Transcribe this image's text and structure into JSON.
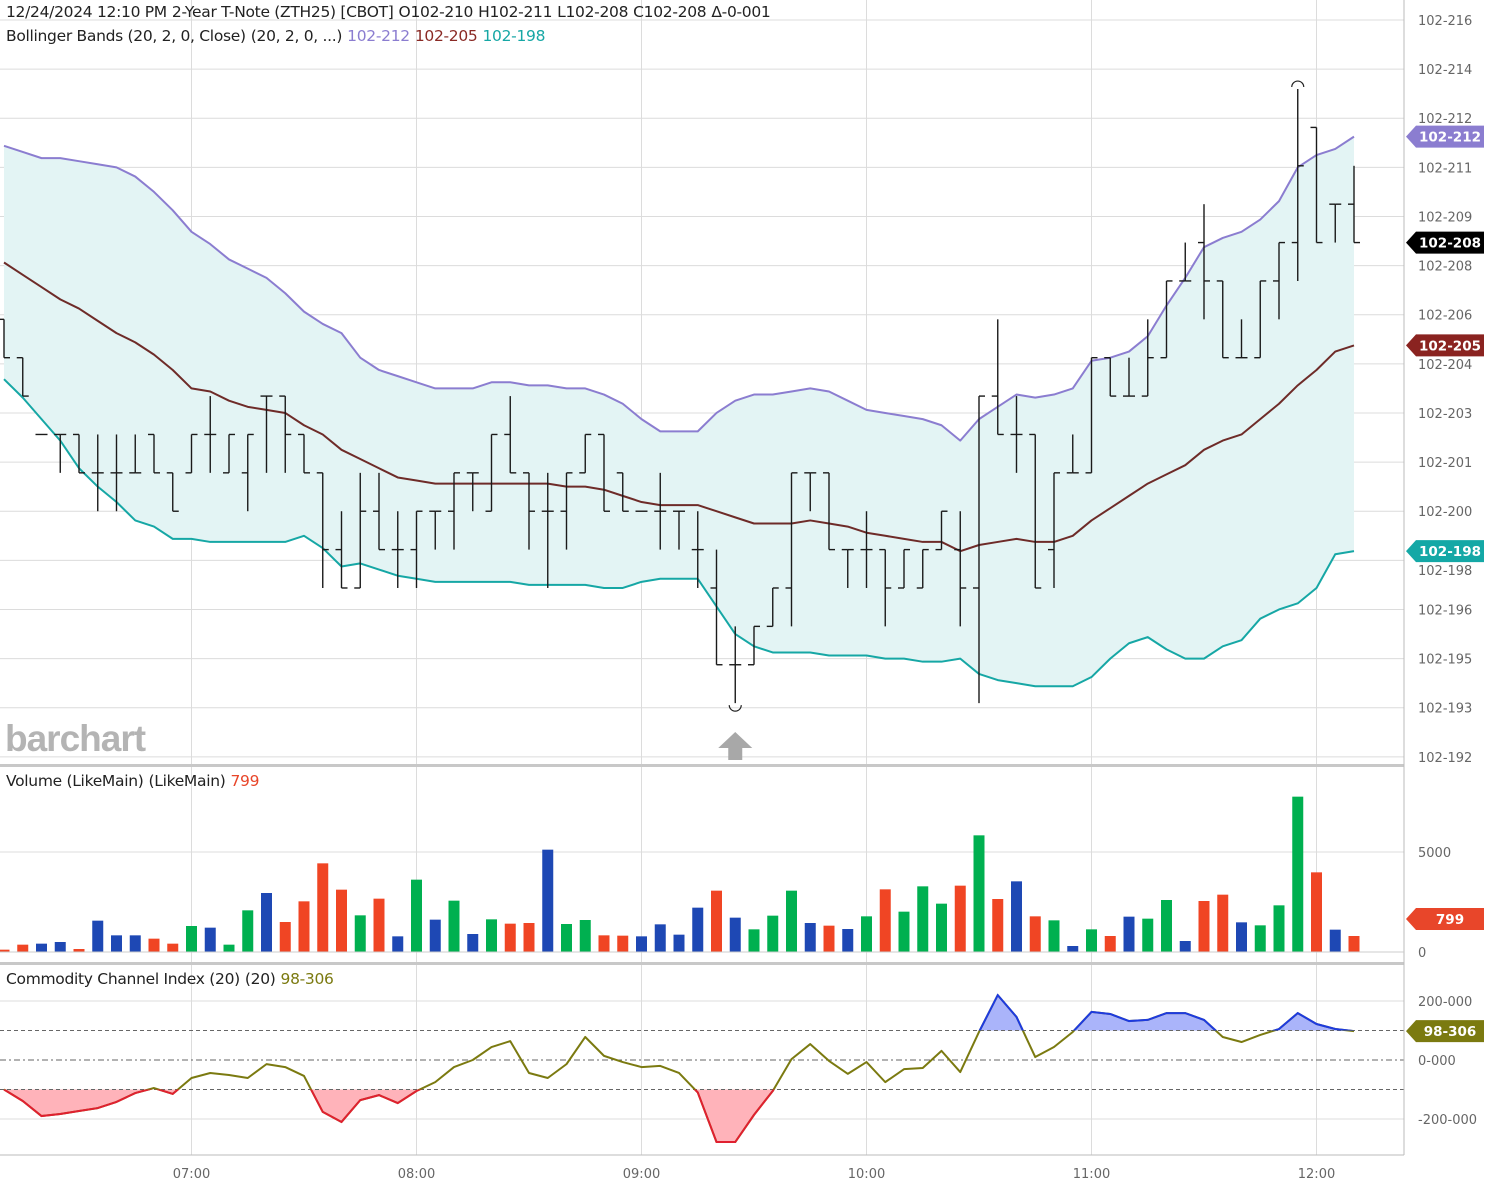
{
  "header": {
    "datetime": "12/24/2024 12:10 PM",
    "symbol": "2-Year T-Note (ZTH25) [CBOT]",
    "open": "O102-210",
    "high": "H102-211",
    "low": "L102-208",
    "close": "C102-208",
    "change": "Δ-0-001"
  },
  "bollinger_legend": {
    "name": "Bollinger Bands (20, 2, 0, Close)",
    "params": "(20, 2, 0, ...)",
    "upper": "102-212",
    "middle": "102-205",
    "lower": "102-198"
  },
  "volume_legend": {
    "name": "Volume (LikeMain)",
    "params": "(LikeMain)",
    "value": "799"
  },
  "cci_legend": {
    "name": "Commodity Channel Index (20)",
    "params": "(20)",
    "value": "98-306"
  },
  "watermark": "barchart",
  "colors": {
    "upper": "#8b7dd0",
    "middle": "#6e2b28",
    "lower": "#16a7a5",
    "band_fill": "#e3f4f4",
    "bar": "#1a1a1a",
    "vol_up": "#00b050",
    "vol_down": "#f04524",
    "vol_flat": "#1e48b4",
    "cci": "#7b7a10",
    "cci_over": "#1d3ae0",
    "cci_under": "#e02030",
    "tag_close": "#000000",
    "tag_volume": "#e8462a",
    "tag_cci": "#7b7a10"
  },
  "chart_data": [
    {
      "type": "ohlc",
      "title": "2-Year T-Note (ZTH25) [CBOT]",
      "units": "32nds above 102",
      "ylim": [
        19.18,
        21.665
      ],
      "y_ticks": [
        {
          "value": 21.6,
          "label": "102-216"
        },
        {
          "value": 21.44,
          "label": "102-214"
        },
        {
          "value": 21.28,
          "label": "102-212"
        },
        {
          "value": 21.12,
          "label": "102-211"
        },
        {
          "value": 20.96,
          "label": "102-209"
        },
        {
          "value": 20.8,
          "label": "102-208"
        },
        {
          "value": 20.64,
          "label": "102-206"
        },
        {
          "value": 20.48,
          "label": "102-204"
        },
        {
          "value": 20.32,
          "label": "102-203"
        },
        {
          "value": 20.16,
          "label": "102-201"
        },
        {
          "value": 20.0,
          "label": "102-200"
        },
        {
          "value": 19.84,
          "label": "102-198"
        },
        {
          "value": 19.68,
          "label": "102-196"
        },
        {
          "value": 19.52,
          "label": "102-195"
        },
        {
          "value": 19.36,
          "label": "102-193"
        },
        {
          "value": 19.2,
          "label": "102-192"
        }
      ],
      "x_ticks": [
        "07:00",
        "08:00",
        "09:00",
        "10:00",
        "11:00",
        "12:00"
      ],
      "times": [
        "06:10",
        "06:15",
        "06:20",
        "06:25",
        "06:30",
        "06:35",
        "06:40",
        "06:45",
        "06:50",
        "06:55",
        "07:00",
        "07:05",
        "07:10",
        "07:15",
        "07:20",
        "07:25",
        "07:30",
        "07:35",
        "07:40",
        "07:45",
        "07:50",
        "07:55",
        "08:00",
        "08:05",
        "08:10",
        "08:15",
        "08:20",
        "08:25",
        "08:30",
        "08:35",
        "08:40",
        "08:45",
        "08:50",
        "08:55",
        "09:00",
        "09:05",
        "09:10",
        "09:15",
        "09:20",
        "09:25",
        "09:30",
        "09:35",
        "09:40",
        "09:45",
        "09:50",
        "09:55",
        "10:00",
        "10:05",
        "10:10",
        "10:15",
        "10:20",
        "10:25",
        "10:30",
        "10:35",
        "10:40",
        "10:45",
        "10:50",
        "10:55",
        "11:00",
        "11:05",
        "11:10",
        "11:15",
        "11:20",
        "11:25",
        "11:30",
        "11:35",
        "11:40",
        "11:45",
        "11:50",
        "11:55",
        "12:00",
        "12:05",
        "12:10"
      ],
      "ohlc": [
        [
          20.625,
          20.625,
          20.5,
          20.5
        ],
        [
          20.5,
          20.5,
          20.375,
          20.375
        ],
        [
          20.25,
          20.25,
          20.25,
          20.25
        ],
        [
          20.25,
          20.25,
          20.125,
          20.25
        ],
        [
          20.25,
          20.25,
          20.125,
          20.125
        ],
        [
          20.125,
          20.25,
          20.0,
          20.125
        ],
        [
          20.125,
          20.25,
          20.0,
          20.125
        ],
        [
          20.125,
          20.25,
          20.125,
          20.125
        ],
        [
          20.25,
          20.25,
          20.125,
          20.125
        ],
        [
          20.125,
          20.125,
          20.0,
          20.0
        ],
        [
          20.125,
          20.25,
          20.125,
          20.25
        ],
        [
          20.25,
          20.375,
          20.125,
          20.25
        ],
        [
          20.125,
          20.25,
          20.125,
          20.25
        ],
        [
          20.125,
          20.25,
          20.0,
          20.25
        ],
        [
          20.375,
          20.375,
          20.125,
          20.375
        ],
        [
          20.375,
          20.375,
          20.125,
          20.25
        ],
        [
          20.25,
          20.25,
          20.125,
          20.125
        ],
        [
          20.125,
          20.125,
          19.75,
          19.875
        ],
        [
          19.875,
          20.0,
          19.75,
          19.75
        ],
        [
          19.75,
          20.125,
          19.75,
          20.0
        ],
        [
          20.0,
          20.125,
          19.875,
          19.875
        ],
        [
          19.875,
          20.0,
          19.75,
          19.875
        ],
        [
          19.875,
          20.0,
          19.75,
          20.0
        ],
        [
          20.0,
          20.0,
          19.875,
          20.0
        ],
        [
          20.0,
          20.125,
          19.875,
          20.125
        ],
        [
          20.125,
          20.125,
          20.0,
          20.125
        ],
        [
          20.0,
          20.25,
          20.0,
          20.25
        ],
        [
          20.25,
          20.375,
          20.125,
          20.125
        ],
        [
          20.125,
          20.125,
          19.875,
          20.0
        ],
        [
          20.0,
          20.125,
          19.75,
          20.0
        ],
        [
          20.0,
          20.125,
          19.875,
          20.125
        ],
        [
          20.125,
          20.25,
          20.125,
          20.25
        ],
        [
          20.25,
          20.25,
          20.0,
          20.0
        ],
        [
          20.125,
          20.125,
          20.0,
          20.0
        ],
        [
          20.0,
          20.0,
          20.0,
          20.0
        ],
        [
          20.0,
          20.125,
          19.875,
          20.0
        ],
        [
          20.0,
          20.0,
          19.875,
          20.0
        ],
        [
          19.875,
          20.0,
          19.75,
          19.875
        ],
        [
          19.75,
          19.875,
          19.5,
          19.5
        ],
        [
          19.5,
          19.625,
          19.375,
          19.5
        ],
        [
          19.5,
          19.625,
          19.5,
          19.625
        ],
        [
          19.625,
          19.75,
          19.625,
          19.75
        ],
        [
          19.75,
          20.125,
          19.625,
          20.125
        ],
        [
          20.125,
          20.125,
          20.0,
          20.125
        ],
        [
          20.125,
          20.125,
          19.875,
          19.875
        ],
        [
          19.875,
          19.875,
          19.75,
          19.875
        ],
        [
          19.875,
          20.0,
          19.75,
          19.875
        ],
        [
          19.875,
          19.875,
          19.625,
          19.75
        ],
        [
          19.75,
          19.875,
          19.75,
          19.875
        ],
        [
          19.75,
          19.875,
          19.75,
          19.875
        ],
        [
          19.875,
          20.0,
          19.875,
          20.0
        ],
        [
          19.875,
          20.0,
          19.625,
          19.75
        ],
        [
          19.75,
          20.375,
          19.375,
          20.375
        ],
        [
          20.375,
          20.625,
          20.25,
          20.25
        ],
        [
          20.25,
          20.375,
          20.125,
          20.25
        ],
        [
          20.25,
          20.25,
          19.75,
          19.75
        ],
        [
          19.875,
          20.125,
          19.75,
          20.125
        ],
        [
          20.125,
          20.25,
          20.125,
          20.125
        ],
        [
          20.125,
          20.5,
          20.125,
          20.5
        ],
        [
          20.5,
          20.5,
          20.375,
          20.375
        ],
        [
          20.375,
          20.5,
          20.375,
          20.375
        ],
        [
          20.375,
          20.625,
          20.375,
          20.5
        ],
        [
          20.5,
          20.75,
          20.5,
          20.75
        ],
        [
          20.75,
          20.875,
          20.75,
          20.75
        ],
        [
          20.875,
          21.0,
          20.625,
          20.75
        ],
        [
          20.75,
          20.75,
          20.5,
          20.5
        ],
        [
          20.5,
          20.625,
          20.5,
          20.5
        ],
        [
          20.5,
          20.75,
          20.5,
          20.75
        ],
        [
          20.75,
          20.875,
          20.625,
          20.875
        ],
        [
          20.875,
          21.375,
          20.75,
          21.125
        ],
        [
          21.25,
          21.25,
          20.875,
          20.875
        ],
        [
          21.0,
          21.0,
          20.875,
          21.0
        ],
        [
          21.0,
          21.125,
          20.875,
          20.875
        ]
      ],
      "bollinger_upper": [
        21.19,
        21.17,
        21.15,
        21.15,
        21.14,
        21.13,
        21.12,
        21.09,
        21.04,
        20.98,
        20.91,
        20.87,
        20.82,
        20.79,
        20.76,
        20.71,
        20.65,
        20.61,
        20.58,
        20.5,
        20.46,
        20.44,
        20.42,
        20.4,
        20.4,
        20.4,
        20.42,
        20.42,
        20.41,
        20.41,
        20.4,
        20.4,
        20.38,
        20.35,
        20.3,
        20.26,
        20.26,
        20.26,
        20.32,
        20.36,
        20.38,
        20.38,
        20.39,
        20.4,
        20.39,
        20.36,
        20.33,
        20.32,
        20.31,
        20.3,
        20.28,
        20.23,
        20.3,
        20.34,
        20.38,
        20.37,
        20.38,
        20.4,
        20.49,
        20.5,
        20.52,
        20.57,
        20.67,
        20.76,
        20.86,
        20.89,
        20.91,
        20.95,
        21.01,
        21.12,
        21.16,
        21.18,
        21.22
      ],
      "bollinger_middle": [
        20.81,
        20.77,
        20.73,
        20.69,
        20.66,
        20.62,
        20.58,
        20.55,
        20.51,
        20.46,
        20.4,
        20.39,
        20.36,
        20.34,
        20.33,
        20.32,
        20.28,
        20.25,
        20.2,
        20.17,
        20.14,
        20.11,
        20.1,
        20.09,
        20.09,
        20.09,
        20.09,
        20.09,
        20.09,
        20.09,
        20.08,
        20.08,
        20.07,
        20.05,
        20.03,
        20.02,
        20.02,
        20.02,
        20.0,
        19.98,
        19.96,
        19.96,
        19.96,
        19.97,
        19.96,
        19.95,
        19.93,
        19.92,
        19.91,
        19.9,
        19.9,
        19.87,
        19.89,
        19.9,
        19.91,
        19.9,
        19.9,
        19.92,
        19.97,
        20.01,
        20.05,
        20.09,
        20.12,
        20.15,
        20.2,
        20.23,
        20.25,
        20.3,
        20.35,
        20.41,
        20.46,
        20.52,
        20.54
      ],
      "bollinger_lower": [
        20.43,
        20.37,
        20.3,
        20.23,
        20.14,
        20.08,
        20.03,
        19.97,
        19.95,
        19.91,
        19.91,
        19.9,
        19.9,
        19.9,
        19.9,
        19.9,
        19.92,
        19.88,
        19.82,
        19.83,
        19.81,
        19.79,
        19.78,
        19.77,
        19.77,
        19.77,
        19.77,
        19.77,
        19.76,
        19.76,
        19.76,
        19.76,
        19.75,
        19.75,
        19.77,
        19.78,
        19.78,
        19.78,
        19.69,
        19.6,
        19.56,
        19.54,
        19.54,
        19.54,
        19.53,
        19.53,
        19.53,
        19.52,
        19.52,
        19.51,
        19.51,
        19.52,
        19.47,
        19.45,
        19.44,
        19.43,
        19.43,
        19.43,
        19.46,
        19.52,
        19.57,
        19.59,
        19.55,
        19.52,
        19.52,
        19.56,
        19.58,
        19.65,
        19.68,
        19.7,
        19.75,
        19.86,
        19.87
      ],
      "high_marker_index": 69,
      "low_marker_index": 39,
      "event_marker_index": 39,
      "price_tags": [
        {
          "label": "102-212",
          "value": 21.22,
          "color": "#8b7dd0"
        },
        {
          "label": "102-208",
          "value": 20.875,
          "color": "#000000"
        },
        {
          "label": "102-205",
          "value": 20.54,
          "color": "#8a2320"
        },
        {
          "label": "102-198",
          "value": 19.87,
          "color": "#14a8a6"
        }
      ]
    },
    {
      "type": "bar",
      "title": "Volume (LikeMain)",
      "y_ticks": [
        {
          "value": 5000,
          "label": "5000"
        },
        {
          "value": 0,
          "label": "0"
        }
      ],
      "values": [
        117,
        367,
        417,
        500,
        150,
        1567,
        833,
        833,
        667,
        417,
        1300,
        1217,
        367,
        2083,
        2950,
        1500,
        2533,
        4433,
        3117,
        1833,
        2667,
        783,
        3617,
        1617,
        2567,
        900,
        1633,
        1417,
        1450,
        5117,
        1400,
        1600,
        833,
        817,
        783,
        1383,
        867,
        2217,
        3067,
        1717,
        1133,
        1817,
        3067,
        1450,
        1317,
        1150,
        1783,
        3133,
        2017,
        3283,
        2417,
        3317,
        5833,
        2650,
        3533,
        1783,
        1583,
        300,
        1133,
        800,
        1767,
        1667,
        2600,
        550,
        2550,
        2867,
        1483,
        1333,
        2333,
        7767,
        3983,
        1117,
        800
      ],
      "directions": "rrbbrbbbrrgbggbrrrrgrbgbgbgrrbggrrbbbbrbgggbrbgrgggrgrbrgbgrbggbrrbgggrbr",
      "tag": "799"
    },
    {
      "type": "line",
      "title": "Commodity Channel Index (20)",
      "y_ticks": [
        {
          "value": 200,
          "label": "200-000"
        },
        {
          "value": 0,
          "label": "0-000"
        },
        {
          "value": -200,
          "label": "-200-000"
        }
      ],
      "levels": [
        100,
        0,
        -100
      ],
      "values": [
        -100,
        -139,
        -190,
        -183,
        -173,
        -163,
        -142,
        -112,
        -95,
        -115,
        -61,
        -44,
        -51,
        -61,
        -14,
        -24,
        -54,
        -176,
        -210,
        -136,
        -119,
        -146,
        -105,
        -75,
        -24,
        0,
        44,
        64,
        -44,
        -61,
        -14,
        78,
        14,
        -7,
        -24,
        -20,
        -44,
        -110,
        -278,
        -278,
        -186,
        -105,
        3,
        54,
        -3,
        -47,
        -7,
        -75,
        -31,
        -27,
        31,
        -41,
        95,
        220,
        146,
        10,
        44,
        95,
        163,
        156,
        132,
        136,
        159,
        159,
        136,
        78,
        61,
        85,
        105,
        159,
        122,
        105,
        98
      ],
      "tag": "98-306"
    }
  ]
}
